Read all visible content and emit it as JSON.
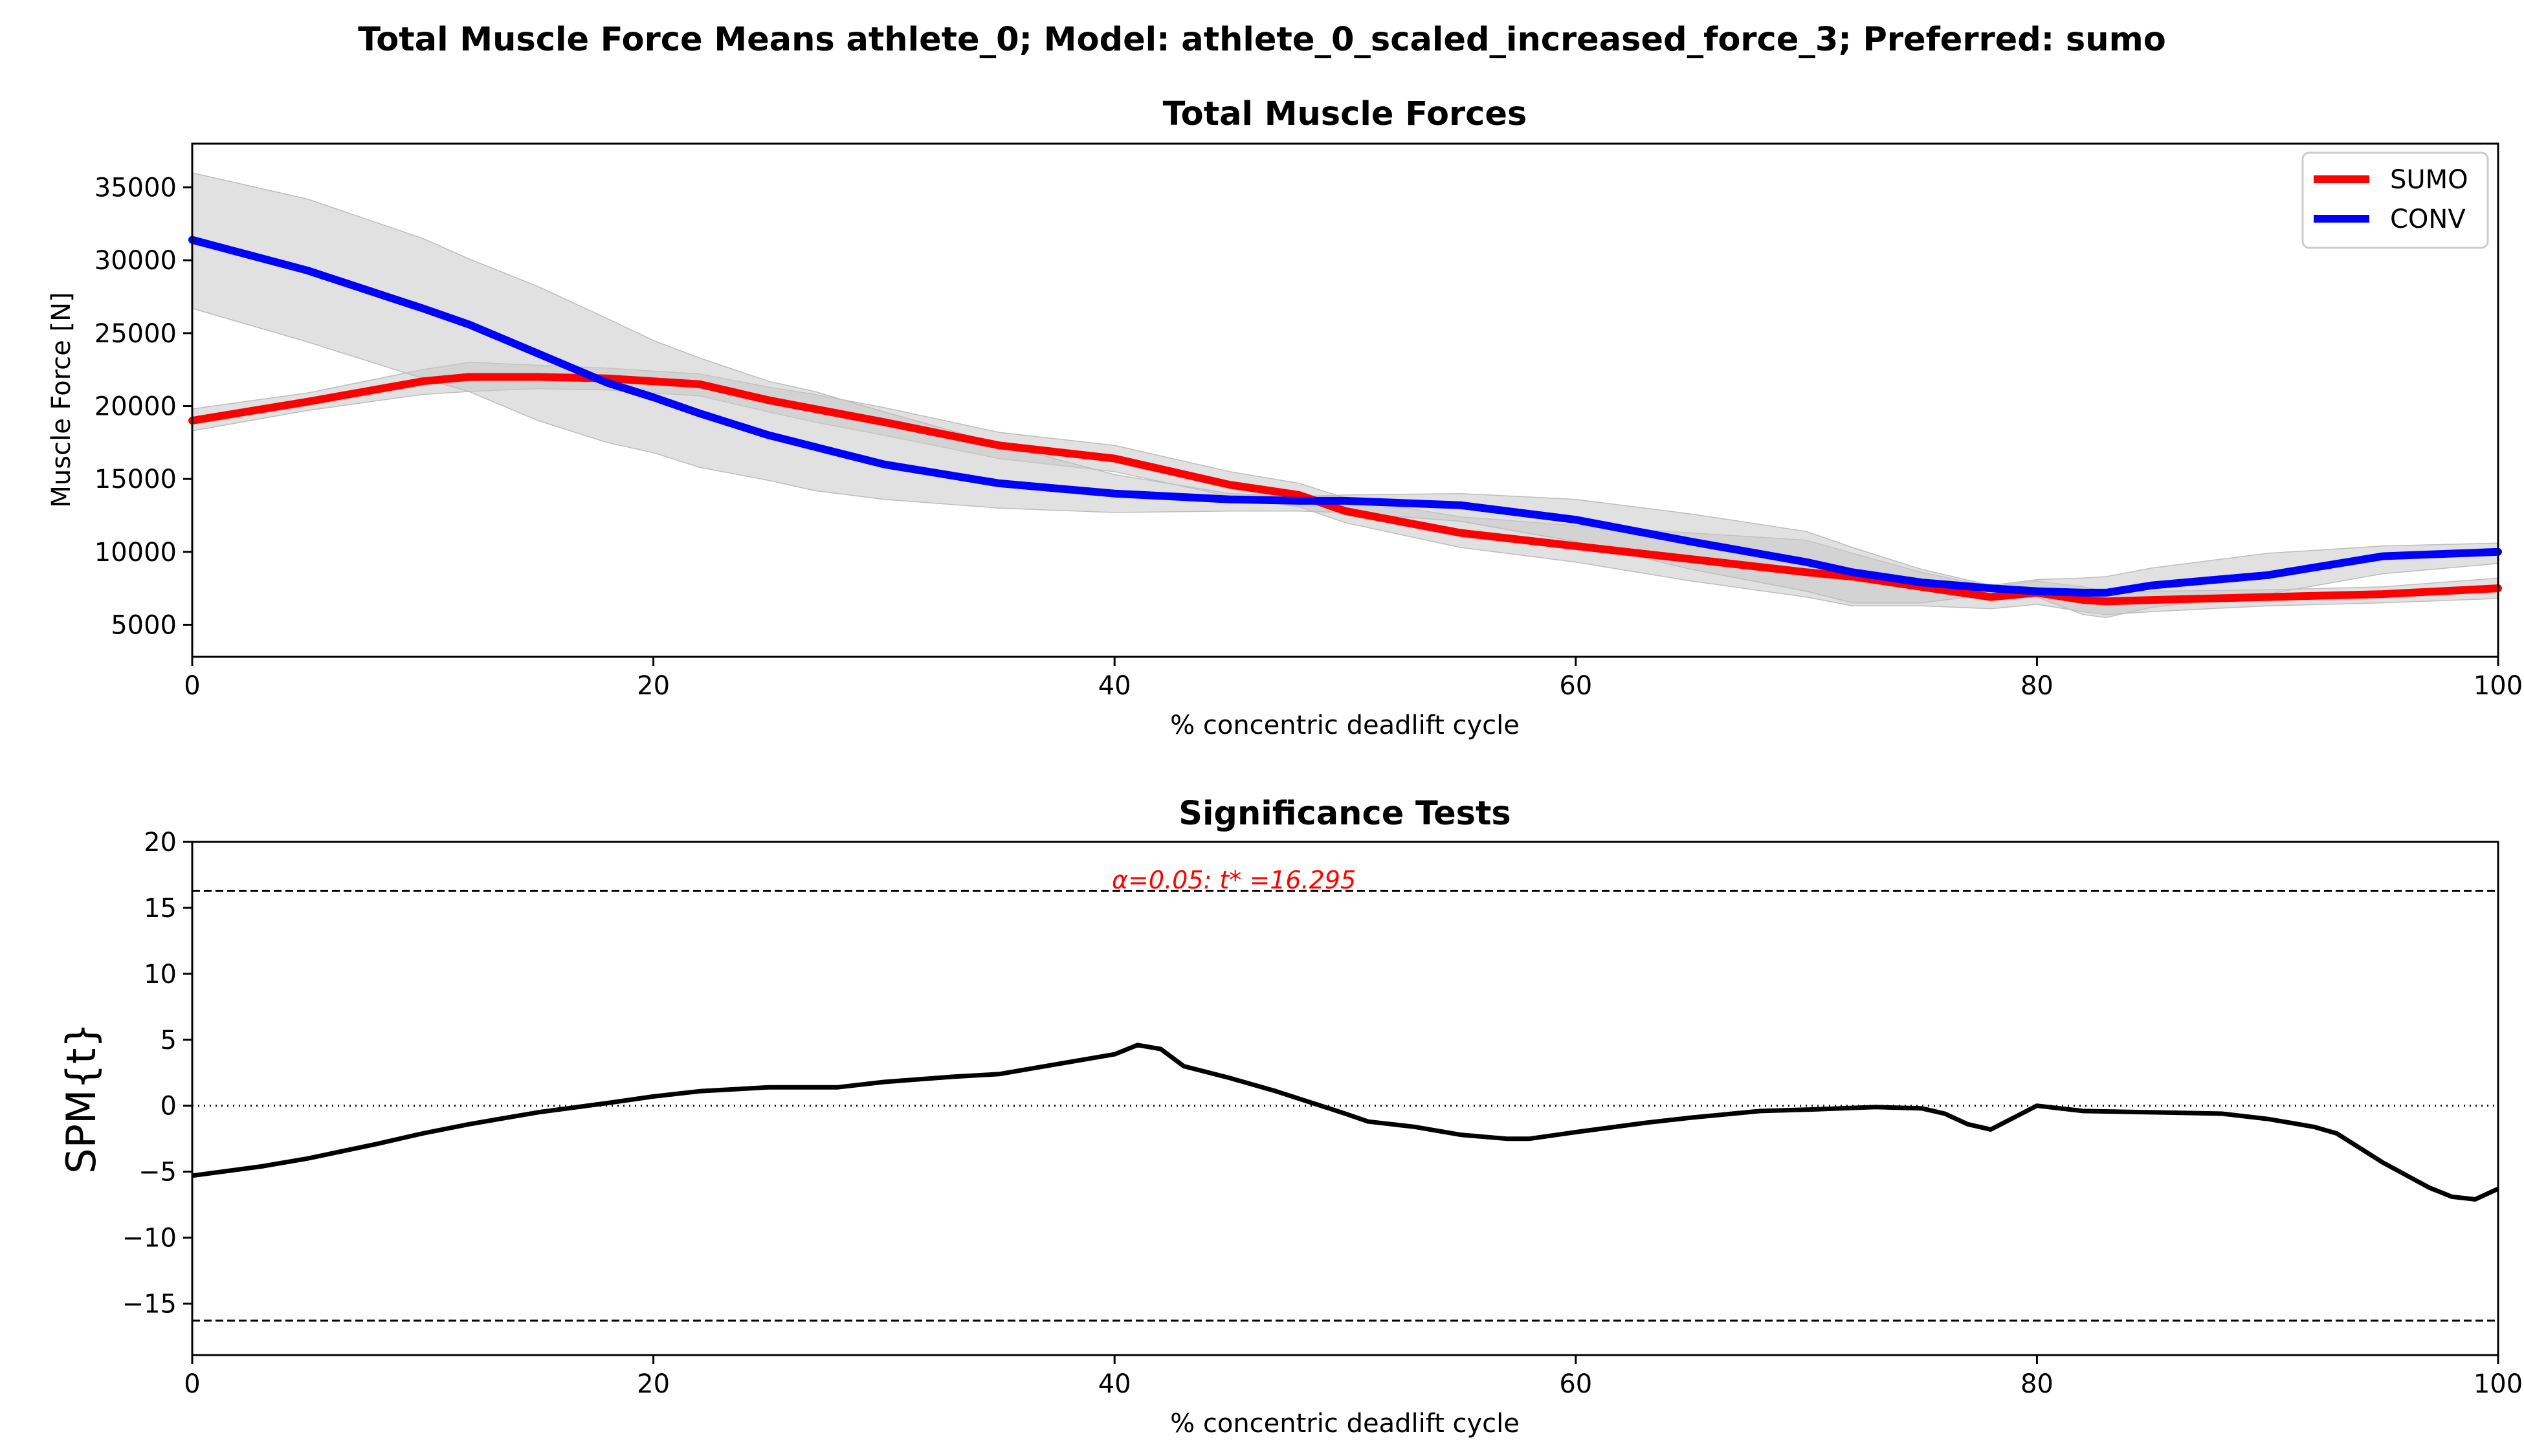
{
  "figure": {
    "suptitle": "Total Muscle Force Means athlete_0; Model: athlete_0_scaled_increased_force_3; Preferred: sumo"
  },
  "chart_data": [
    {
      "type": "line",
      "title": "Total Muscle Forces",
      "xlabel": "% concentric deadlift cycle",
      "ylabel": "Muscle Force [N]",
      "xlim": [
        0,
        100
      ],
      "ylim": [
        2800,
        38000
      ],
      "xticks": [
        0,
        20,
        40,
        60,
        80,
        100
      ],
      "yticks": [
        5000,
        10000,
        15000,
        20000,
        25000,
        30000,
        35000
      ],
      "grid": false,
      "legend": {
        "position": "top-right",
        "entries": [
          "SUMO",
          "CONV"
        ]
      },
      "x": [
        0,
        5,
        10,
        12,
        15,
        18,
        20,
        22,
        25,
        27,
        30,
        35,
        40,
        45,
        48,
        50,
        55,
        60,
        65,
        70,
        72,
        75,
        78,
        80,
        82,
        83,
        85,
        90,
        95,
        100
      ],
      "series": [
        {
          "name": "SUMO",
          "color": "#ff0000",
          "values": [
            19000,
            20300,
            21700,
            22000,
            22000,
            21900,
            21700,
            21500,
            20400,
            19800,
            18900,
            17300,
            16400,
            14600,
            13900,
            12800,
            11300,
            10400,
            9500,
            8600,
            8300,
            7600,
            6900,
            7200,
            6700,
            6600,
            6700,
            6900,
            7100,
            7500
          ],
          "band_upper": [
            19800,
            20900,
            22500,
            23000,
            22800,
            22600,
            22400,
            22200,
            21300,
            20800,
            19900,
            18200,
            17300,
            15500,
            14700,
            13700,
            12400,
            11800,
            11300,
            10800,
            9900,
            8600,
            7600,
            8000,
            7600,
            7300,
            7300,
            7400,
            7600,
            8200
          ],
          "band_lower": [
            18300,
            19700,
            20800,
            21000,
            21200,
            21100,
            20900,
            20700,
            19600,
            18900,
            18000,
            16400,
            15500,
            13800,
            13100,
            12000,
            10300,
            9300,
            8000,
            6900,
            6300,
            6300,
            6100,
            6400,
            5900,
            5700,
            5900,
            6300,
            6500,
            6800
          ]
        },
        {
          "name": "CONV",
          "color": "#0000ff",
          "values": [
            31400,
            29300,
            26700,
            25600,
            23600,
            21600,
            20600,
            19500,
            18000,
            17200,
            16000,
            14700,
            14000,
            13600,
            13500,
            13500,
            13200,
            12200,
            10700,
            9300,
            8600,
            7900,
            7500,
            7300,
            7200,
            7200,
            7700,
            8400,
            9700,
            10000
          ],
          "band_upper": [
            36000,
            34200,
            31500,
            30100,
            28200,
            26000,
            24500,
            23300,
            21700,
            21000,
            19600,
            17400,
            15300,
            14000,
            13800,
            13900,
            14000,
            13600,
            12600,
            11400,
            10300,
            8800,
            7700,
            8100,
            8200,
            8300,
            8900,
            9900,
            10400,
            10600
          ],
          "band_lower": [
            26700,
            24400,
            21900,
            21000,
            19000,
            17500,
            16800,
            15800,
            14900,
            14200,
            13600,
            13000,
            12700,
            12800,
            12800,
            12700,
            12100,
            10700,
            8800,
            7300,
            6500,
            6500,
            7100,
            6900,
            5700,
            5500,
            6200,
            7100,
            8500,
            9200
          ]
        }
      ],
      "band_color": "#c8c8c8"
    },
    {
      "type": "line",
      "title": "Significance Tests",
      "xlabel": "% concentric deadlift cycle",
      "ylabel": "SPM{t}",
      "xlim": [
        0,
        100
      ],
      "ylim": [
        -18.9,
        20
      ],
      "xticks": [
        0,
        20,
        40,
        60,
        80,
        100
      ],
      "yticks": [
        -15,
        -10,
        -5,
        0,
        5,
        10,
        15,
        20
      ],
      "grid": false,
      "threshold": 16.295,
      "threshold_label": "α=0.05:  t* =16.295",
      "threshold_color": "#ff0000",
      "x": [
        0,
        3,
        5,
        8,
        10,
        12,
        15,
        18,
        20,
        22,
        25,
        28,
        30,
        33,
        35,
        38,
        40,
        41,
        42,
        43,
        45,
        47,
        50,
        51,
        53,
        55,
        57,
        58,
        60,
        63,
        65,
        68,
        70,
        73,
        75,
        76,
        77,
        78,
        80,
        82,
        85,
        88,
        90,
        92,
        93,
        95,
        97,
        98,
        99,
        100
      ],
      "series": [
        {
          "name": "SPM{t}",
          "color": "#000000",
          "values": [
            -5.3,
            -4.6,
            -4.0,
            -2.9,
            -2.1,
            -1.4,
            -0.5,
            0.2,
            0.7,
            1.1,
            1.4,
            1.4,
            1.8,
            2.2,
            2.4,
            3.3,
            3.9,
            4.6,
            4.3,
            3.0,
            2.1,
            1.1,
            -0.6,
            -1.2,
            -1.6,
            -2.2,
            -2.5,
            -2.5,
            -2.0,
            -1.3,
            -0.9,
            -0.4,
            -0.3,
            -0.1,
            -0.2,
            -0.6,
            -1.4,
            -1.8,
            0.0,
            -0.4,
            -0.5,
            -0.6,
            -1.0,
            -1.6,
            -2.1,
            -4.3,
            -6.2,
            -6.9,
            -7.1,
            -6.3
          ]
        }
      ]
    }
  ]
}
